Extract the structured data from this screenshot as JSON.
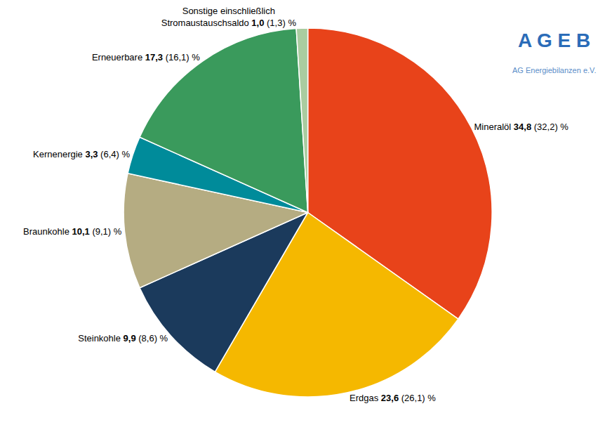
{
  "chart_data": {
    "type": "pie",
    "categories": [
      "Mineralöl",
      "Erdgas",
      "Steinkohle",
      "Braunkohle",
      "Kernenergie",
      "Erneuerbare",
      "Sonstige einschließlich\nStromaustauschsaldo"
    ],
    "values": [
      34.8,
      23.6,
      9.9,
      10.1,
      3.3,
      17.3,
      1.0
    ],
    "value_labels": [
      "34,8",
      "23,6",
      "9,9",
      "10,1",
      "3,3",
      "17,3",
      "1,0"
    ],
    "prev_values": [
      32.2,
      26.1,
      8.6,
      9.1,
      6.4,
      16.1,
      1.3
    ],
    "prev_labels": [
      "(32,2) %",
      "(26,1) %",
      "(8,6) %",
      "(9,1) %",
      "(6,4) %",
      "(16,1) %",
      "(1,3) %"
    ],
    "colors": [
      "#E8431A",
      "#F5B800",
      "#1B3A5C",
      "#B5AC82",
      "#008B9A",
      "#3A9A5C",
      "#AACCA0"
    ],
    "data_labels": true,
    "annotations": [
      {
        "text": "A G E B",
        "color": "#2B6CB8"
      },
      {
        "text": "AG Energiebilanzen e.V.",
        "color": "#5A8DC8"
      }
    ]
  }
}
